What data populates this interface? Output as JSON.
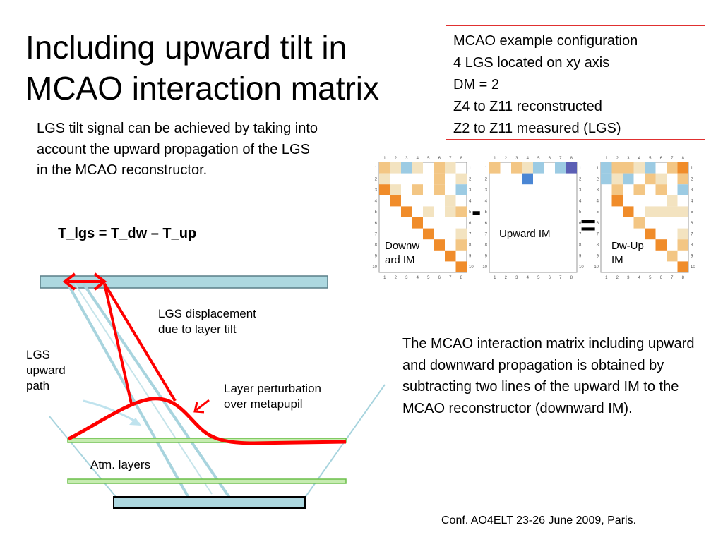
{
  "title": "Including upward tilt in\nMCAO interaction matrix",
  "config_box": {
    "lines": [
      "MCAO  example configuration",
      "4 LGS located on xy axis",
      "DM = 2",
      "Z4 to Z11 reconstructed",
      "Z2 to Z11 measured (LGS)"
    ]
  },
  "intro_text": "LGS tilt signal can be achieved by taking into account the upward propagation of the   LGS in the MCAO reconstructor.",
  "equation": "T_lgs = T_dw – T_up",
  "matrices": {
    "minus_symbol": "-",
    "equals_symbol": "=",
    "col_ticks": [
      "1",
      "2",
      "3",
      "4",
      "5",
      "6",
      "7",
      "8"
    ],
    "row_ticks": [
      "1",
      "2",
      "3",
      "4",
      "5",
      "6",
      "7",
      "8",
      "9",
      "10"
    ],
    "items": [
      {
        "label_lines": [
          "Downw",
          "ard IM"
        ]
      },
      {
        "label_lines": [
          "Upward IM"
        ]
      },
      {
        "label_lines": [
          "Dw-Up",
          "IM"
        ]
      }
    ],
    "colors": {
      "orange": "#f08c2a",
      "light_orange": "#f3c684",
      "pale": "#f3e3c0",
      "blue": "#4a86d4",
      "light_blue": "#9ccbe3",
      "purple": "#5b5fb5"
    }
  },
  "diagram": {
    "lgs_displacement_label": "LGS displacement\ndue to layer tilt",
    "lgs_upward_path_label": "LGS\nupward\npath",
    "layer_perturbation_label": "Layer perturbation\nover  metapupil",
    "atm_layers_label": "Atm. layers",
    "colors": {
      "beam": "#a8d4de",
      "layer": "#8fd16a",
      "red": "#ff0000",
      "bar": "#add8e0"
    }
  },
  "conclusion_text": "The MCAO interaction matrix including upward and downward propagation is obtained by subtracting two lines of the upward IM to the MCAO reconstructor (downward IM).",
  "footer": "Conf. AO4ELT 23-26 June 2009, Paris."
}
